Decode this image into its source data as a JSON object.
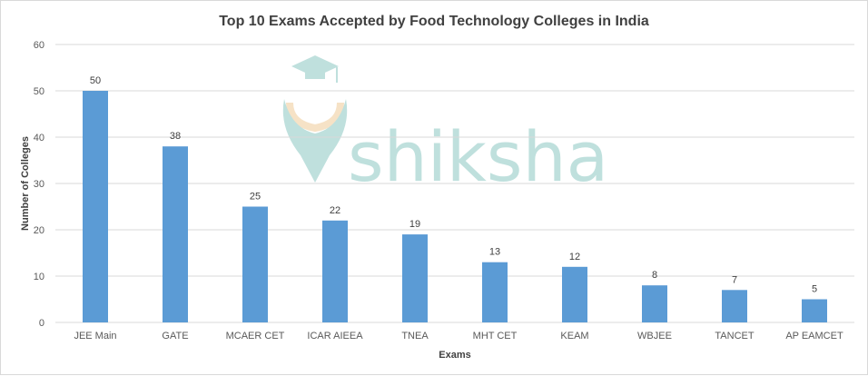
{
  "watermark": {
    "text": "shiksha"
  },
  "colors": {
    "bar": "#5b9bd5",
    "grid": "#d9d9d9",
    "watermark": "#bfe0dd",
    "watermark_accent": "#f6e2c6"
  },
  "chart_data": {
    "type": "bar",
    "title": "Top  10 Exams Accepted by Food Technology Colleges in India",
    "xlabel": "Exams",
    "ylabel": "Number of Colleges",
    "categories": [
      "JEE Main",
      "GATE",
      "MCAER CET",
      "ICAR AIEEA",
      "TNEA",
      "MHT CET",
      "KEAM",
      "WBJEE",
      "TANCET",
      "AP EAMCET"
    ],
    "values": [
      50,
      38,
      25,
      22,
      19,
      13,
      12,
      8,
      7,
      5
    ],
    "ylim": [
      0,
      60
    ],
    "yticks": [
      0,
      10,
      20,
      30,
      40,
      50,
      60
    ],
    "grid": true,
    "data_labels": true,
    "legend": "none"
  }
}
